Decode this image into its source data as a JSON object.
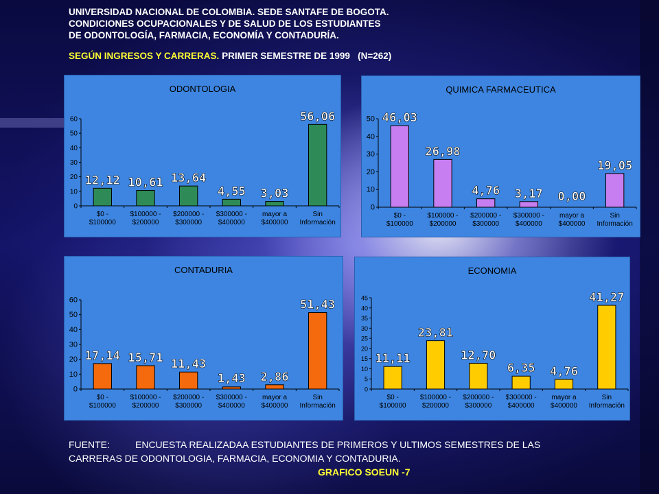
{
  "header": {
    "line1": "UNIVERSIDAD NACIONAL DE COLOMBIA. SEDE SANTAFE DE BOGOTA.",
    "line2": "CONDICIONES OCUPACIONALES Y DE SALUD DE LOS ESTUDIANTES",
    "line3": "DE ODONTOLOGÍA, FARMACIA, ECONOMÍA Y CONTADURÍA.",
    "sub_yellow": "SEGÚN INGRESOS Y CARRERAS.",
    "sub_white": "PRIMER SEMESTRE DE 1999",
    "n": "(N=262)"
  },
  "footer": {
    "label": "FUENTE:",
    "text1": "ENCUESTA REALIZADAA ESTUDIANTES DE PRIMEROS Y ULTIMOS SEMESTRES DE LAS",
    "text2": "CARRERAS DE ODONTOLOGIA, FARMACIA, ECONOMIA Y CONTADURIA.",
    "ref": "GRAFICO SOEUN -7"
  },
  "chart_data": [
    {
      "type": "bar",
      "title": "ODONTOLOGIA",
      "categories": [
        [
          "$0 -",
          "$100000"
        ],
        [
          "$100000 -",
          "$200000"
        ],
        [
          "$200000 -",
          "$300000"
        ],
        [
          "$300000 -",
          "$400000"
        ],
        [
          "mayor a",
          "$400000"
        ],
        [
          "Sin",
          "Información"
        ]
      ],
      "values": [
        12.12,
        10.61,
        13.64,
        4.55,
        3.03,
        56.06
      ],
      "labels": [
        "12,12",
        "10,61",
        "13,64",
        "4,55",
        "3,03",
        "56,06"
      ],
      "yticks": [
        0,
        10,
        20,
        30,
        40,
        50,
        60
      ],
      "ylim": [
        0,
        60
      ],
      "bar_color": "#2e8b57",
      "grid": false
    },
    {
      "type": "bar",
      "title": "QUIMICA FARMACEUTICA",
      "categories": [
        [
          "$0 -",
          "$100000"
        ],
        [
          "$100000 -",
          "$200000"
        ],
        [
          "$200000 -",
          "$300000"
        ],
        [
          "$300000 -",
          "$400000"
        ],
        [
          "mayor a",
          "$400000"
        ],
        [
          "Sin",
          "Información"
        ]
      ],
      "values": [
        46.03,
        26.98,
        4.76,
        3.17,
        0.0,
        19.05
      ],
      "labels": [
        "46,03",
        "26,98",
        "4,76",
        "3,17",
        "0,00",
        "19,05"
      ],
      "yticks": [
        0,
        10,
        20,
        30,
        40,
        50
      ],
      "ylim": [
        0,
        50
      ],
      "bar_color": "#c77ef0",
      "grid": false
    },
    {
      "type": "bar",
      "title": "CONTADURIA",
      "categories": [
        [
          "$0 -",
          "$100000"
        ],
        [
          "$100000 -",
          "$200000"
        ],
        [
          "$200000 -",
          "$300000"
        ],
        [
          "$300000 -",
          "$400000"
        ],
        [
          "mayor a",
          "$400000"
        ],
        [
          "Sin",
          "Información"
        ]
      ],
      "values": [
        17.14,
        15.71,
        11.43,
        1.43,
        2.86,
        51.43
      ],
      "labels": [
        "17,14",
        "15,71",
        "11,43",
        "1,43",
        "2,86",
        "51,43"
      ],
      "yticks": [
        0,
        10,
        20,
        30,
        40,
        50,
        60
      ],
      "ylim": [
        0,
        60
      ],
      "bar_color": "#f46a0c",
      "grid": false
    },
    {
      "type": "bar",
      "title": "ECONOMIA",
      "categories": [
        [
          "$0 -",
          "$100000"
        ],
        [
          "$100000 -",
          "$200000"
        ],
        [
          "$200000 -",
          "$300000"
        ],
        [
          "$300000 -",
          "$400000"
        ],
        [
          "mayor a",
          "$400000"
        ],
        [
          "Sin",
          "Información"
        ]
      ],
      "values": [
        11.11,
        23.81,
        12.7,
        6.35,
        4.76,
        41.27
      ],
      "labels": [
        "11,11",
        "23,81",
        "12,70",
        "6,35",
        "4,76",
        "41,27"
      ],
      "yticks": [
        0,
        5,
        10,
        15,
        20,
        25,
        30,
        35,
        40,
        45
      ],
      "ylim": [
        0,
        45
      ],
      "bar_color": "#ffcc00",
      "grid": false
    }
  ]
}
